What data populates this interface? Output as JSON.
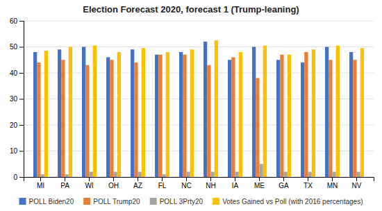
{
  "chart_data": {
    "type": "bar",
    "title": "Election Forecast 2020, forecast 1 (Trump-leaning)",
    "categories": [
      "MI",
      "PA",
      "WI",
      "OH",
      "AZ",
      "FL",
      "NC",
      "NH",
      "IA",
      "ME",
      "GA",
      "TX",
      "MN",
      "NV"
    ],
    "series": [
      {
        "name": "POLL Biden20",
        "color": "#4472C4",
        "values": [
          48,
          49,
          50,
          46,
          49,
          47,
          48,
          52,
          45,
          50,
          45,
          44,
          50,
          48
        ]
      },
      {
        "name": "POLL Trump20",
        "color": "#ED7D31",
        "values": [
          44,
          45,
          43,
          45,
          44,
          47,
          47,
          43,
          46,
          38,
          47,
          48,
          45,
          45
        ]
      },
      {
        "name": "POLL 3Prty20",
        "color": "#A5A5A5",
        "values": [
          1,
          1,
          2,
          2,
          2,
          1,
          2,
          2,
          2,
          5,
          2,
          2,
          2,
          2
        ]
      },
      {
        "name": "Votes Gained vs Poll (with 2016 percentages)",
        "color": "#FFC000",
        "values": [
          48.5,
          50,
          50.5,
          48,
          49.5,
          48,
          49,
          52.5,
          48,
          50.5,
          47,
          49,
          50.5,
          49.5
        ]
      }
    ],
    "ylim": [
      0,
      60
    ],
    "yticks": [
      0,
      10,
      20,
      30,
      40,
      50,
      60
    ],
    "grid": true,
    "legend": "bottom"
  }
}
